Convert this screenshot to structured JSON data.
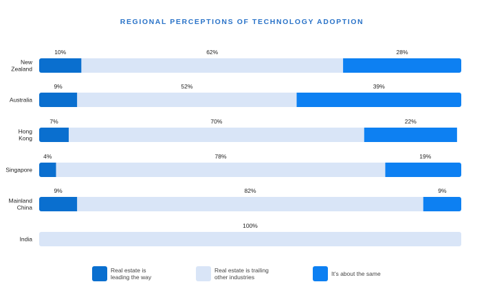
{
  "colors": {
    "leading": "#0a6fcf",
    "trailing": "#d9e5f7",
    "same": "#0d80f2",
    "title": "#2a73c8",
    "text": "#222222",
    "legend_text": "#444444"
  },
  "chart_data": {
    "type": "bar",
    "orientation": "horizontal",
    "stacked": true,
    "title": "REGIONAL PERCEPTIONS OF TECHNOLOGY ADOPTION",
    "xlim": [
      0,
      100
    ],
    "legend_position": "bottom",
    "grid": false,
    "categories": [
      [
        "New",
        "Zealand"
      ],
      [
        "Australia"
      ],
      [
        "Hong",
        "Kong"
      ],
      [
        "Singapore"
      ],
      [
        "Mainland",
        "China"
      ],
      [
        "India"
      ]
    ],
    "series": [
      {
        "key": "leading",
        "name": [
          "Real estate is",
          "leading the way"
        ],
        "values": [
          10,
          9,
          7,
          4,
          9,
          0
        ],
        "labels": [
          "10%",
          "9%",
          "7%",
          "4%",
          "9%",
          ""
        ]
      },
      {
        "key": "trailing",
        "name": [
          "Real estate is trailing",
          "other industries"
        ],
        "values": [
          62,
          52,
          70,
          78,
          82,
          100
        ],
        "labels": [
          "62%",
          "52%",
          "70%",
          "78%",
          "82%",
          "100%"
        ]
      },
      {
        "key": "same",
        "name": [
          "It’s about the same"
        ],
        "values": [
          28,
          39,
          22,
          19,
          9,
          0
        ],
        "labels": [
          "28%",
          "39%",
          "22%",
          "19%",
          "9%",
          ""
        ]
      }
    ]
  }
}
